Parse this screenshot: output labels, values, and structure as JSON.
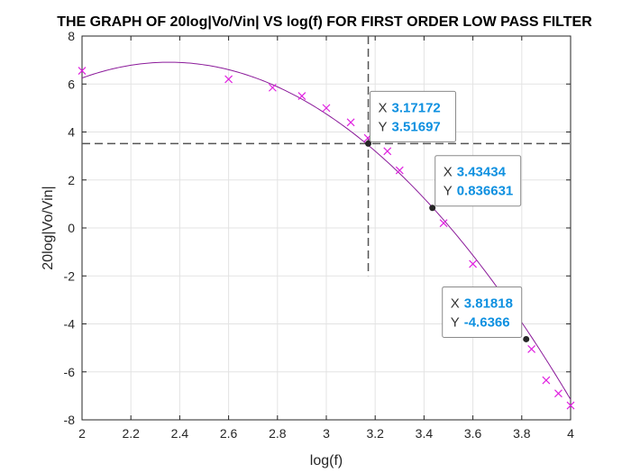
{
  "chart_data": {
    "type": "line",
    "title": "THE GRAPH OF 20log|Vo/Vin| VS log(f) FOR FIRST ORDER LOW PASS FILTER",
    "xlabel": "log(f)",
    "ylabel": "20log|Vo/Vin|",
    "xlim": [
      2,
      4
    ],
    "ylim": [
      -8,
      8
    ],
    "xticks": [
      2,
      2.2,
      2.4,
      2.6,
      2.8,
      3,
      3.2,
      3.4,
      3.6,
      3.8,
      4
    ],
    "xtick_labels": [
      "2",
      "2.2",
      "2.4",
      "2.6",
      "2.8",
      "3",
      "3.2",
      "3.4",
      "3.6",
      "3.8",
      "4"
    ],
    "yticks": [
      -8,
      -6,
      -4,
      -2,
      0,
      2,
      4,
      6,
      8
    ],
    "ytick_labels": [
      "-8",
      "-6",
      "-4",
      "-2",
      "0",
      "2",
      "4",
      "6",
      "8"
    ],
    "grid": true,
    "colors": {
      "fit": "#8b1a9a",
      "markers": "#e020e0",
      "datatip_value": "#0e90e0",
      "crosshair": "#555555"
    },
    "series": [
      {
        "type": "scatter",
        "marker": "x",
        "x": [
          2.0,
          2.6,
          2.78,
          2.9,
          3.0,
          3.1,
          3.17,
          3.25,
          3.3,
          3.48,
          3.6,
          3.84,
          3.9,
          3.95,
          4.0
        ],
        "y": [
          6.55,
          6.2,
          5.85,
          5.5,
          5.0,
          4.4,
          3.75,
          3.2,
          2.4,
          0.2,
          -1.5,
          -5.05,
          -6.35,
          -6.9,
          -7.4
        ]
      },
      {
        "type": "line",
        "fit": "quadratic",
        "coefficients": [
          -5.2,
          24.5,
          -21.95
        ],
        "x_range": [
          2,
          4
        ]
      }
    ],
    "crosshair": {
      "x": 3.17172,
      "y": 3.51697,
      "x_line_y_range": [
        -2,
        8
      ],
      "y_line_x_range": [
        2,
        4
      ]
    },
    "datatips": [
      {
        "x_key": "X",
        "x_value": "3.17172",
        "y_key": "Y",
        "y_value": "3.51697",
        "x": 3.17172,
        "y": 3.51697
      },
      {
        "x_key": "X",
        "x_value": "3.43434",
        "y_key": "Y",
        "y_value": "0.836631",
        "x": 3.43434,
        "y": 0.836631
      },
      {
        "x_key": "X",
        "x_value": "3.81818",
        "y_key": "Y",
        "y_value": "-4.6366",
        "x": 3.81818,
        "y": -4.6366
      }
    ]
  }
}
